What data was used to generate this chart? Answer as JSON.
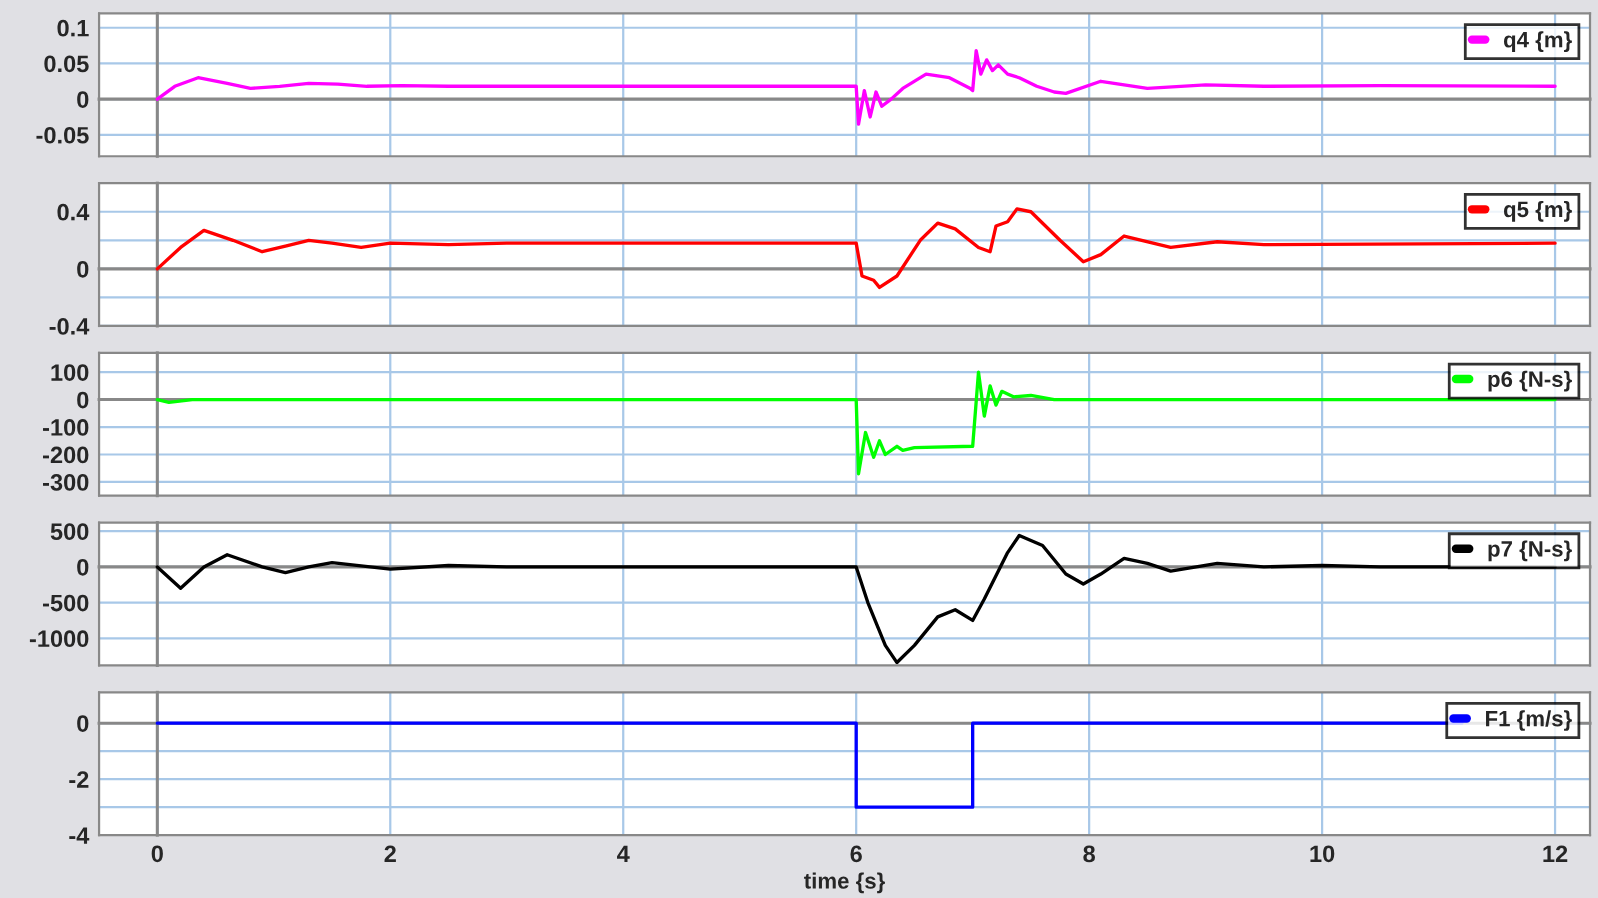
{
  "chart_data": [
    {
      "type": "line",
      "xlim": [
        -0.5,
        12.3
      ],
      "xticks": [
        0,
        2,
        4,
        6,
        8,
        10,
        12
      ],
      "ylim": [
        -0.08,
        0.12
      ],
      "yticks": [
        -0.05,
        0,
        0.05,
        0.1
      ],
      "grid": true,
      "legend": "top right",
      "tick_labels": "y",
      "series": [
        {
          "name": "q4 {m}",
          "color": "#ff00ff",
          "x": [
            0,
            0.15,
            0.35,
            0.6,
            0.8,
            1.05,
            1.3,
            1.55,
            1.8,
            2.1,
            2.5,
            3,
            6,
            6.02,
            6.07,
            6.12,
            6.17,
            6.22,
            6.3,
            6.4,
            6.6,
            6.8,
            6.98,
            7.0,
            7.03,
            7.07,
            7.12,
            7.17,
            7.22,
            7.3,
            7.4,
            7.55,
            7.7,
            7.8,
            8.1,
            8.5,
            9.0,
            9.5,
            10.5,
            12
          ],
          "values": [
            0,
            0.018,
            0.03,
            0.022,
            0.015,
            0.018,
            0.022,
            0.021,
            0.018,
            0.019,
            0.018,
            0.018,
            0.018,
            -0.035,
            0.012,
            -0.025,
            0.01,
            -0.01,
            0.0,
            0.015,
            0.035,
            0.03,
            0.015,
            0.012,
            0.068,
            0.035,
            0.055,
            0.04,
            0.048,
            0.035,
            0.03,
            0.018,
            0.01,
            0.008,
            0.025,
            0.015,
            0.02,
            0.018,
            0.019,
            0.018
          ]
        }
      ]
    },
    {
      "type": "line",
      "xlim": [
        -0.5,
        12.3
      ],
      "xticks": [
        0,
        2,
        4,
        6,
        8,
        10,
        12
      ],
      "ylim": [
        -0.4,
        0.6
      ],
      "yticks": [
        -0.4,
        {
          "value": -0.2,
          "label": null
        },
        0,
        {
          "value": 0.2,
          "label": null
        },
        0.4
      ],
      "grid": true,
      "legend": "top right",
      "tick_labels": "y",
      "series": [
        {
          "name": "q5 {m}",
          "color": "#ff0000",
          "x": [
            0,
            0.2,
            0.4,
            0.65,
            0.9,
            1.1,
            1.3,
            1.5,
            1.75,
            2.0,
            2.5,
            3,
            6,
            6.05,
            6.15,
            6.2,
            6.35,
            6.55,
            6.7,
            6.85,
            7.05,
            7.15,
            7.2,
            7.3,
            7.38,
            7.5,
            7.75,
            7.95,
            8.1,
            8.3,
            8.7,
            9.1,
            9.5,
            12
          ],
          "values": [
            0,
            0.15,
            0.27,
            0.2,
            0.12,
            0.16,
            0.2,
            0.18,
            0.15,
            0.18,
            0.17,
            0.18,
            0.18,
            -0.05,
            -0.08,
            -0.13,
            -0.05,
            0.2,
            0.32,
            0.28,
            0.15,
            0.12,
            0.3,
            0.33,
            0.42,
            0.4,
            0.2,
            0.05,
            0.1,
            0.23,
            0.15,
            0.19,
            0.17,
            0.18
          ]
        }
      ]
    },
    {
      "type": "line",
      "xlim": [
        -0.5,
        12.3
      ],
      "xticks": [
        0,
        2,
        4,
        6,
        8,
        10,
        12
      ],
      "ylim": [
        -350,
        170
      ],
      "yticks": [
        -300,
        -200,
        -100,
        0,
        100
      ],
      "grid": true,
      "legend": "top right",
      "tick_labels": "y",
      "series": [
        {
          "name": "p6 {N-s}",
          "color": "#00ff00",
          "x": [
            0,
            0.1,
            0.3,
            6,
            6.02,
            6.08,
            6.15,
            6.2,
            6.25,
            6.35,
            6.4,
            6.5,
            7.0,
            7.05,
            7.1,
            7.15,
            7.2,
            7.25,
            7.35,
            7.5,
            7.7,
            12
          ],
          "values": [
            0,
            -10,
            0,
            0,
            -270,
            -120,
            -210,
            -150,
            -200,
            -170,
            -185,
            -175,
            -170,
            100,
            -60,
            50,
            -20,
            30,
            10,
            15,
            0,
            0
          ]
        }
      ]
    },
    {
      "type": "line",
      "xlim": [
        -0.5,
        12.3
      ],
      "xticks": [
        0,
        2,
        4,
        6,
        8,
        10,
        12
      ],
      "ylim": [
        -1380,
        620
      ],
      "yticks": [
        -1000,
        -500,
        0,
        500
      ],
      "grid": true,
      "legend": "top right",
      "tick_labels": "y",
      "series": [
        {
          "name": "p7 {N-s}",
          "color": "#000000",
          "x": [
            0,
            0.2,
            0.4,
            0.6,
            0.9,
            1.1,
            1.3,
            1.5,
            2.0,
            2.5,
            3,
            6,
            6.1,
            6.25,
            6.35,
            6.5,
            6.7,
            6.85,
            7.0,
            7.1,
            7.3,
            7.4,
            7.6,
            7.8,
            7.95,
            8.1,
            8.3,
            8.5,
            8.7,
            9.1,
            9.5,
            10,
            10.5,
            12
          ],
          "values": [
            0,
            -300,
            0,
            170,
            0,
            -80,
            0,
            60,
            -30,
            20,
            0,
            0,
            -500,
            -1100,
            -1340,
            -1100,
            -700,
            -600,
            -750,
            -450,
            200,
            440,
            300,
            -100,
            -240,
            -100,
            120,
            50,
            -60,
            50,
            0,
            20,
            0,
            0
          ]
        }
      ]
    },
    {
      "type": "line",
      "xlim": [
        -0.5,
        12.3
      ],
      "xticks": [
        0,
        2,
        4,
        6,
        8,
        10,
        12
      ],
      "ylim": [
        -4,
        1.1
      ],
      "yticks": [
        -4,
        {
          "value": -3,
          "label": null
        },
        -2,
        {
          "value": -1,
          "label": null
        },
        0
      ],
      "grid": true,
      "legend": "top right",
      "xlabel": "time {s}",
      "series": [
        {
          "name": "F1 {m/s}",
          "color": "#0000ff",
          "x": [
            0,
            6,
            6,
            7,
            7,
            11.2
          ],
          "values": [
            0,
            0,
            -3,
            -3,
            0,
            0
          ]
        }
      ]
    }
  ]
}
